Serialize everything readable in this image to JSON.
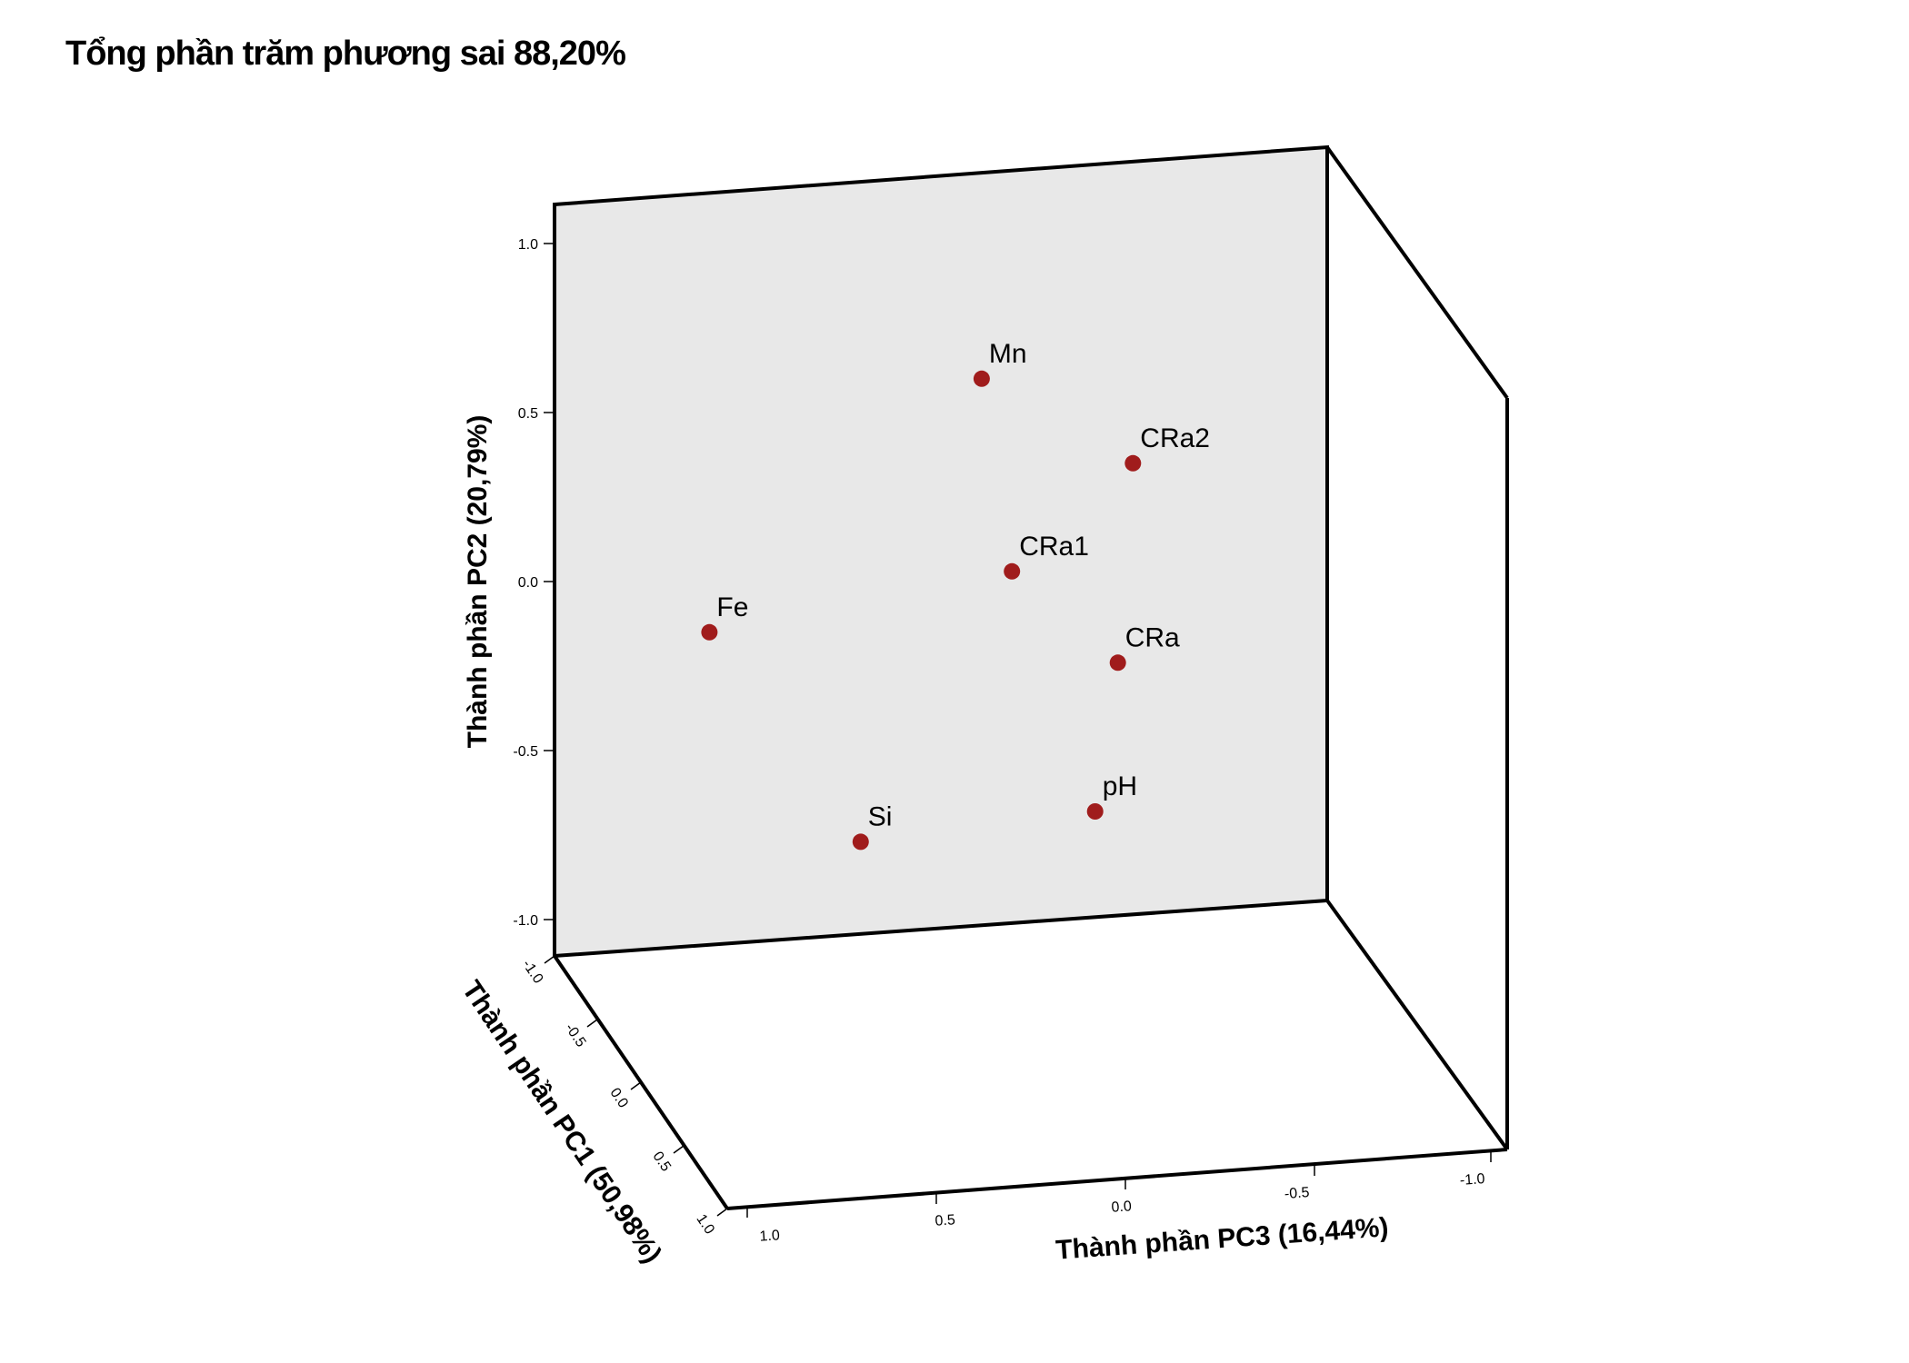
{
  "chart_data": {
    "type": "scatter",
    "title": "Tổng phần trăm phương sai 88,20%",
    "axes": {
      "pc1": {
        "label": "Thành phần PC1 (50,98%)",
        "ticks": [
          "-1.0",
          "-0.5",
          "0.0",
          "0.5",
          "1.0"
        ],
        "range": [
          -1,
          1
        ]
      },
      "pc2": {
        "label": "Thành phần PC2 (20,79%)",
        "ticks": [
          "1.0",
          "0.5",
          "0.0",
          "-0.5",
          "-1.0"
        ],
        "range": [
          -1,
          1
        ]
      },
      "pc3": {
        "label": "Thành phần PC3 (16,44%)",
        "ticks": [
          "1.0",
          "0.5",
          "0.0",
          "-0.5",
          "-1.0"
        ],
        "range": [
          -1,
          1
        ]
      }
    },
    "points": [
      {
        "label": "Mn",
        "pc2": 0.6,
        "pc3": 0.38
      },
      {
        "label": "CRa2",
        "pc2": 0.35,
        "pc3": -0.02
      },
      {
        "label": "CRa1",
        "pc2": 0.03,
        "pc3": 0.3
      },
      {
        "label": "Fe",
        "pc2": -0.15,
        "pc3": 1.1
      },
      {
        "label": "CRa",
        "pc2": -0.24,
        "pc3": 0.02
      },
      {
        "label": "pH",
        "pc2": -0.68,
        "pc3": 0.08
      },
      {
        "label": "Si",
        "pc2": -0.77,
        "pc3": 0.7
      }
    ],
    "colors": {
      "point": "#a01c1c",
      "back_wall": "#e8e8e8",
      "frame": "#000000"
    }
  }
}
